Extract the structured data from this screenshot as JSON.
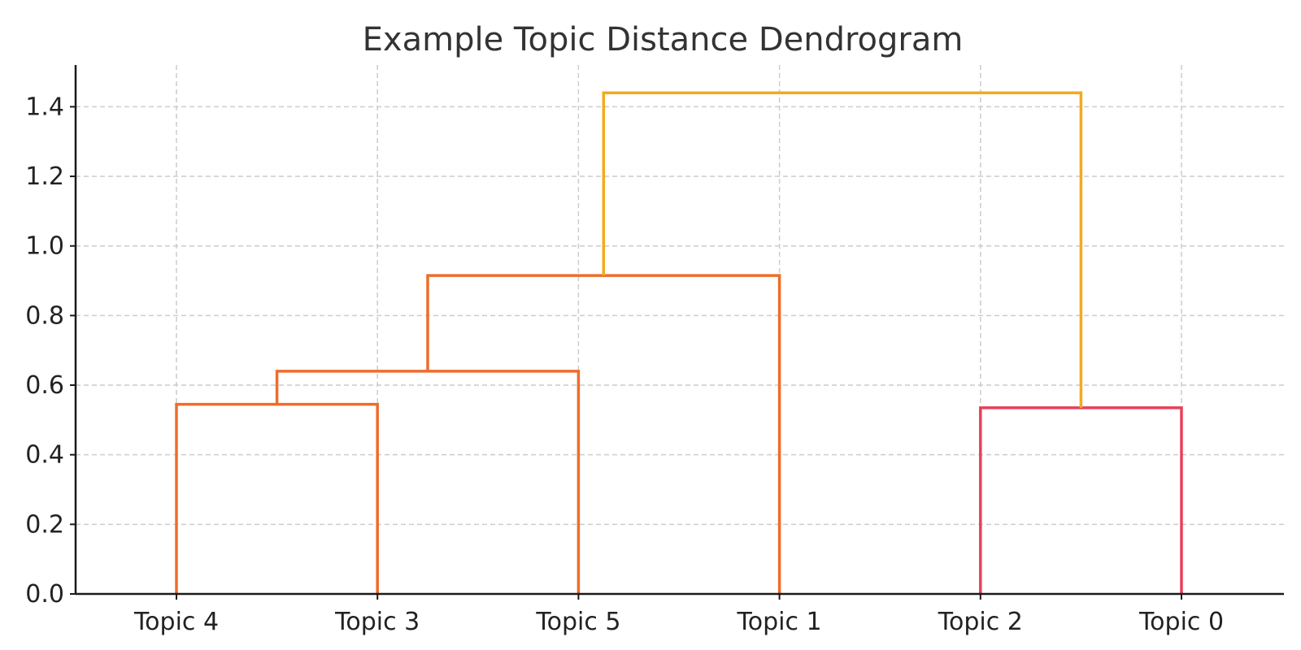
{
  "chart_data": {
    "type": "dendrogram",
    "title": "Example Topic Distance Dendrogram",
    "xlabel": "",
    "ylabel": "",
    "ylim": [
      0,
      1.52
    ],
    "yticks": [
      0.0,
      0.2,
      0.4,
      0.6,
      0.8,
      1.0,
      1.2,
      1.4
    ],
    "ytick_labels": [
      "0.0",
      "0.2",
      "0.4",
      "0.6",
      "0.8",
      "1.0",
      "1.2",
      "1.4"
    ],
    "grid": true,
    "leaves": [
      "Topic 4",
      "Topic 3",
      "Topic 5",
      "Topic 1",
      "Topic 2",
      "Topic 0"
    ],
    "links": [
      {
        "left": "Topic 4",
        "right": "Topic 3",
        "height": 0.545,
        "color": "#ee6d2a"
      },
      {
        "left": "(Topic 4, Topic 3)",
        "right": "Topic 5",
        "height": 0.64,
        "color": "#ee6d2a"
      },
      {
        "left": "(Topic 4, Topic 3, Topic 5)",
        "right": "Topic 1",
        "height": 0.915,
        "color": "#ee6d2a"
      },
      {
        "left": "Topic 2",
        "right": "Topic 0",
        "height": 0.535,
        "color": "#e8405a"
      },
      {
        "left": "(Topic 4, Topic 3, Topic 5, Topic 1)",
        "right": "(Topic 2, Topic 0)",
        "height": 1.44,
        "color": "#f4a91c"
      }
    ]
  }
}
